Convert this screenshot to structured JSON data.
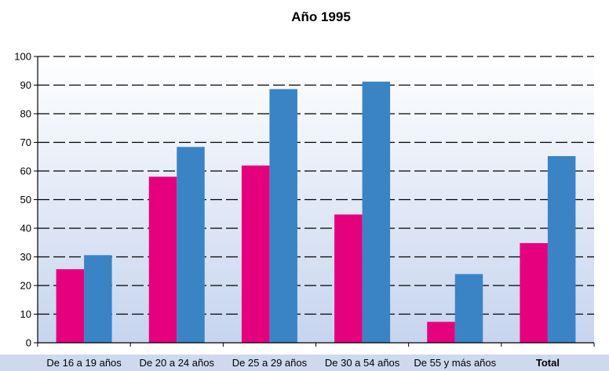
{
  "chart_data": {
    "type": "bar",
    "title": "Año 1995",
    "xlabel": "",
    "ylabel": "",
    "ylim": [
      0,
      100
    ],
    "yticks": [
      0,
      10,
      20,
      30,
      40,
      50,
      60,
      70,
      80,
      90,
      100
    ],
    "grid": true,
    "legend": "none",
    "categories": [
      "De 16 a 19 años",
      "De 20 a 24 años",
      "De 25 a 29 años",
      "De 30 a 54 años",
      "De 55 y más años",
      "Total"
    ],
    "bold_categories": [
      "Total"
    ],
    "series": [
      {
        "color": "#e5007e",
        "values": [
          25.7,
          58.0,
          61.9,
          44.8,
          7.3,
          34.8
        ]
      },
      {
        "color": "#3a84c5",
        "values": [
          30.6,
          68.4,
          88.6,
          91.2,
          24.0,
          65.2
        ]
      }
    ],
    "colors": {
      "plot_background_top": "#ffffff",
      "plot_background_bottom": "#c6d4ee",
      "category_band": "#cfd9ee",
      "grid_line": "#000000"
    }
  }
}
